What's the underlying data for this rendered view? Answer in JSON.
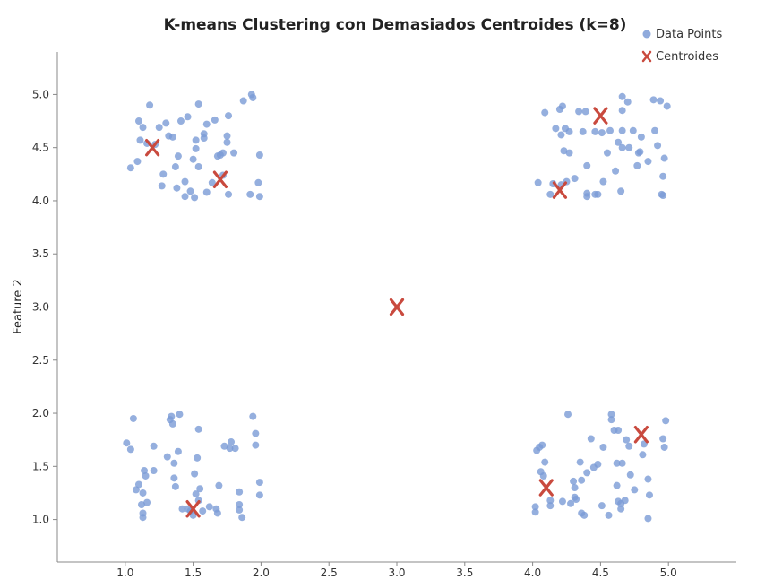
{
  "chart_data": {
    "type": "scatter",
    "title": "K-means Clustering con Demasiados Centroides (k=8)",
    "xlabel": "",
    "ylabel": "Feature 2",
    "xlim": [
      0.5,
      5.5
    ],
    "ylim": [
      0.6,
      5.4
    ],
    "x_ticks": [
      "1.0",
      "1.5",
      "2.0",
      "2.5",
      "3.0",
      "3.5",
      "4.0",
      "4.5",
      "5.0"
    ],
    "y_ticks": [
      "1.0",
      "1.5",
      "2.0",
      "2.5",
      "3.0",
      "3.5",
      "4.0",
      "4.5",
      "5.0"
    ],
    "grid": false,
    "legend_position": "top-right",
    "colors": {
      "points": "#7b9bd6",
      "centroids": "#c94a3e"
    },
    "series": [
      {
        "name": "Data Points",
        "marker": "circle",
        "points": [
          [
            1.04,
            4.31
          ],
          [
            1.09,
            4.37
          ],
          [
            1.11,
            4.57
          ],
          [
            1.13,
            4.69
          ],
          [
            1.16,
            4.54
          ],
          [
            1.18,
            4.9
          ],
          [
            1.1,
            4.75
          ],
          [
            1.22,
            4.53
          ],
          [
            1.25,
            4.69
          ],
          [
            1.27,
            4.14
          ],
          [
            1.28,
            4.25
          ],
          [
            1.3,
            4.73
          ],
          [
            1.32,
            4.61
          ],
          [
            1.35,
            4.6
          ],
          [
            1.37,
            4.32
          ],
          [
            1.38,
            4.12
          ],
          [
            1.39,
            4.42
          ],
          [
            1.41,
            4.75
          ],
          [
            1.44,
            4.18
          ],
          [
            1.44,
            4.04
          ],
          [
            1.46,
            4.79
          ],
          [
            1.48,
            4.09
          ],
          [
            1.5,
            4.39
          ],
          [
            1.51,
            4.03
          ],
          [
            1.52,
            4.57
          ],
          [
            1.52,
            4.49
          ],
          [
            1.54,
            4.32
          ],
          [
            1.54,
            4.91
          ],
          [
            1.58,
            4.59
          ],
          [
            1.58,
            4.63
          ],
          [
            1.6,
            4.08
          ],
          [
            1.6,
            4.72
          ],
          [
            1.64,
            4.17
          ],
          [
            1.66,
            4.76
          ],
          [
            1.68,
            4.42
          ],
          [
            1.7,
            4.43
          ],
          [
            1.72,
            4.45
          ],
          [
            1.72,
            4.24
          ],
          [
            1.75,
            4.55
          ],
          [
            1.75,
            4.61
          ],
          [
            1.76,
            4.8
          ],
          [
            1.76,
            4.06
          ],
          [
            1.8,
            4.45
          ],
          [
            1.87,
            4.94
          ],
          [
            1.92,
            4.06
          ],
          [
            1.93,
            5.0
          ],
          [
            1.94,
            4.97
          ],
          [
            1.98,
            4.17
          ],
          [
            1.99,
            4.04
          ],
          [
            1.99,
            4.43
          ],
          [
            4.04,
            4.17
          ],
          [
            4.09,
            4.83
          ],
          [
            4.13,
            4.06
          ],
          [
            4.15,
            4.16
          ],
          [
            4.17,
            4.68
          ],
          [
            4.2,
            4.86
          ],
          [
            4.21,
            4.62
          ],
          [
            4.21,
            4.15
          ],
          [
            4.22,
            4.89
          ],
          [
            4.23,
            4.47
          ],
          [
            4.24,
            4.68
          ],
          [
            4.25,
            4.18
          ],
          [
            4.27,
            4.65
          ],
          [
            4.27,
            4.45
          ],
          [
            4.31,
            4.21
          ],
          [
            4.34,
            4.84
          ],
          [
            4.37,
            4.65
          ],
          [
            4.39,
            4.84
          ],
          [
            4.4,
            4.33
          ],
          [
            4.4,
            4.07
          ],
          [
            4.4,
            4.04
          ],
          [
            4.46,
            4.06
          ],
          [
            4.46,
            4.65
          ],
          [
            4.48,
            4.06
          ],
          [
            4.51,
            4.64
          ],
          [
            4.52,
            4.18
          ],
          [
            4.55,
            4.45
          ],
          [
            4.57,
            4.66
          ],
          [
            4.61,
            4.28
          ],
          [
            4.63,
            4.55
          ],
          [
            4.65,
            4.09
          ],
          [
            4.66,
            4.5
          ],
          [
            4.66,
            4.66
          ],
          [
            4.66,
            4.98
          ],
          [
            4.66,
            4.85
          ],
          [
            4.7,
            4.93
          ],
          [
            4.71,
            4.5
          ],
          [
            4.74,
            4.66
          ],
          [
            4.77,
            4.33
          ],
          [
            4.78,
            4.45
          ],
          [
            4.79,
            4.46
          ],
          [
            4.8,
            4.6
          ],
          [
            4.85,
            4.37
          ],
          [
            4.89,
            4.95
          ],
          [
            4.9,
            4.66
          ],
          [
            4.92,
            4.52
          ],
          [
            4.94,
            4.94
          ],
          [
            4.95,
            4.06
          ],
          [
            4.96,
            4.05
          ],
          [
            4.96,
            4.23
          ],
          [
            4.97,
            4.4
          ],
          [
            4.99,
            4.89
          ],
          [
            1.01,
            1.72
          ],
          [
            1.04,
            1.66
          ],
          [
            1.06,
            1.95
          ],
          [
            1.08,
            1.28
          ],
          [
            1.1,
            1.33
          ],
          [
            1.12,
            1.14
          ],
          [
            1.13,
            1.06
          ],
          [
            1.13,
            1.02
          ],
          [
            1.13,
            1.25
          ],
          [
            1.14,
            1.46
          ],
          [
            1.15,
            1.41
          ],
          [
            1.16,
            1.16
          ],
          [
            1.21,
            1.46
          ],
          [
            1.21,
            1.69
          ],
          [
            1.31,
            1.59
          ],
          [
            1.33,
            1.94
          ],
          [
            1.34,
            1.97
          ],
          [
            1.35,
            1.9
          ],
          [
            1.36,
            1.53
          ],
          [
            1.36,
            1.39
          ],
          [
            1.37,
            1.31
          ],
          [
            1.39,
            1.64
          ],
          [
            1.4,
            1.99
          ],
          [
            1.42,
            1.1
          ],
          [
            1.46,
            1.1
          ],
          [
            1.48,
            1.08
          ],
          [
            1.5,
            1.04
          ],
          [
            1.51,
            1.43
          ],
          [
            1.52,
            1.24
          ],
          [
            1.53,
            1.58
          ],
          [
            1.54,
            1.85
          ],
          [
            1.54,
            1.18
          ],
          [
            1.55,
            1.29
          ],
          [
            1.57,
            1.08
          ],
          [
            1.62,
            1.12
          ],
          [
            1.67,
            1.1
          ],
          [
            1.68,
            1.06
          ],
          [
            1.69,
            1.32
          ],
          [
            1.73,
            1.69
          ],
          [
            1.77,
            1.67
          ],
          [
            1.78,
            1.73
          ],
          [
            1.81,
            1.67
          ],
          [
            1.84,
            1.14
          ],
          [
            1.84,
            1.26
          ],
          [
            1.84,
            1.09
          ],
          [
            1.86,
            1.02
          ],
          [
            1.94,
            1.97
          ],
          [
            1.96,
            1.81
          ],
          [
            1.96,
            1.7
          ],
          [
            1.99,
            1.35
          ],
          [
            1.99,
            1.23
          ],
          [
            4.02,
            1.07
          ],
          [
            4.02,
            1.12
          ],
          [
            4.03,
            1.65
          ],
          [
            4.05,
            1.68
          ],
          [
            4.06,
            1.45
          ],
          [
            4.07,
            1.7
          ],
          [
            4.08,
            1.41
          ],
          [
            4.09,
            1.54
          ],
          [
            4.13,
            1.18
          ],
          [
            4.13,
            1.13
          ],
          [
            4.22,
            1.17
          ],
          [
            4.26,
            1.99
          ],
          [
            4.28,
            1.15
          ],
          [
            4.3,
            1.36
          ],
          [
            4.31,
            1.3
          ],
          [
            4.31,
            1.21
          ],
          [
            4.32,
            1.19
          ],
          [
            4.35,
            1.54
          ],
          [
            4.36,
            1.06
          ],
          [
            4.36,
            1.37
          ],
          [
            4.38,
            1.04
          ],
          [
            4.4,
            1.44
          ],
          [
            4.43,
            1.76
          ],
          [
            4.45,
            1.49
          ],
          [
            4.48,
            1.52
          ],
          [
            4.51,
            1.13
          ],
          [
            4.52,
            1.68
          ],
          [
            4.56,
            1.04
          ],
          [
            4.58,
            1.94
          ],
          [
            4.58,
            1.99
          ],
          [
            4.6,
            1.84
          ],
          [
            4.62,
            1.32
          ],
          [
            4.62,
            1.53
          ],
          [
            4.63,
            1.84
          ],
          [
            4.63,
            1.17
          ],
          [
            4.65,
            1.15
          ],
          [
            4.65,
            1.1
          ],
          [
            4.66,
            1.53
          ],
          [
            4.68,
            1.18
          ],
          [
            4.69,
            1.75
          ],
          [
            4.71,
            1.69
          ],
          [
            4.72,
            1.42
          ],
          [
            4.75,
            1.28
          ],
          [
            4.81,
            1.61
          ],
          [
            4.82,
            1.71
          ],
          [
            4.85,
            1.01
          ],
          [
            4.85,
            1.38
          ],
          [
            4.86,
            1.23
          ],
          [
            4.96,
            1.76
          ],
          [
            4.97,
            1.68
          ],
          [
            4.98,
            1.93
          ]
        ]
      },
      {
        "name": "Centroides",
        "marker": "x",
        "points": [
          [
            1.2,
            4.5
          ],
          [
            1.7,
            4.2
          ],
          [
            4.2,
            4.1
          ],
          [
            4.5,
            4.8
          ],
          [
            3.0,
            3.0
          ],
          [
            1.5,
            1.1
          ],
          [
            4.1,
            1.3
          ],
          [
            4.8,
            1.8
          ]
        ]
      }
    ]
  }
}
